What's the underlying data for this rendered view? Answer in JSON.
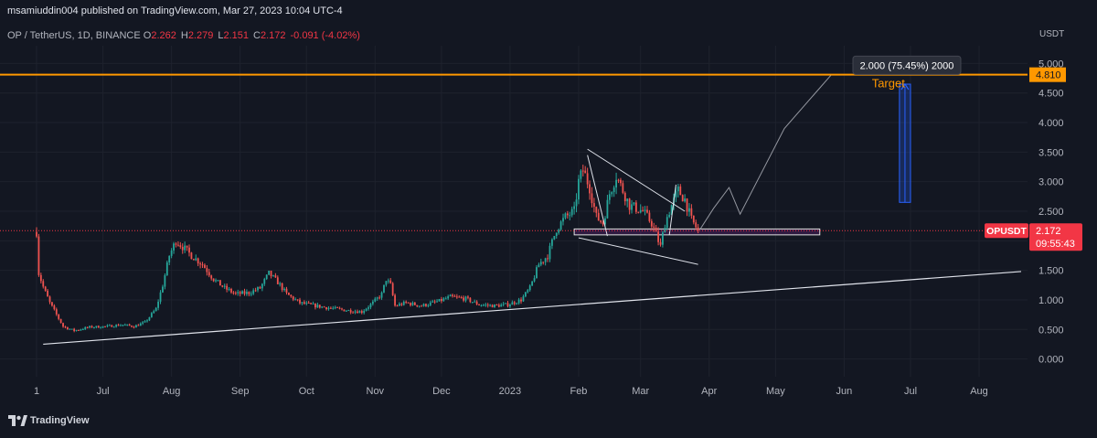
{
  "header": {
    "published_by": "msamiuddin004 published on TradingView.com, Mar 27, 2023 10:04 UTC-4",
    "symbol_line": "OP / TetherUS, 1D, BINANCE",
    "ohlc": [
      {
        "key": "O",
        "value": "2.262"
      },
      {
        "key": "H",
        "value": "2.279"
      },
      {
        "key": "L",
        "value": "2.151"
      },
      {
        "key": "C",
        "value": "2.172"
      },
      {
        "key": "",
        "value": "-0.091 (-4.02%)"
      }
    ]
  },
  "footer": {
    "brand": "TradingView"
  },
  "colors": {
    "background": "#131722",
    "up": "#26a69a",
    "down": "#ef5350",
    "target_line": "#ff9800",
    "price_line": "#f23645",
    "projection_box": "#2962ff",
    "zone_fill": "#9c27b0",
    "axis_text": "#b2b5be",
    "grid": "#1e222d"
  },
  "chart_data": {
    "type": "candlestick",
    "symbol": "OPUSDT",
    "interval": "1D",
    "exchange": "BINANCE",
    "y_axis_unit": "USDT",
    "ylim": [
      -0.3,
      5.3
    ],
    "y_ticks": [
      "0.000",
      "0.500",
      "1.000",
      "1.500",
      "2.000",
      "2.500",
      "3.000",
      "3.500",
      "4.000",
      "4.500",
      "5.000"
    ],
    "x_range": [
      "2022-05-31",
      "2023-08-20"
    ],
    "x_ticks": [
      {
        "label": "1",
        "date": "2022-06-01"
      },
      {
        "label": "Jul",
        "date": "2022-07-01"
      },
      {
        "label": "Aug",
        "date": "2022-08-01"
      },
      {
        "label": "Sep",
        "date": "2022-09-01"
      },
      {
        "label": "Oct",
        "date": "2022-10-01"
      },
      {
        "label": "Nov",
        "date": "2022-11-01"
      },
      {
        "label": "Dec",
        "date": "2022-12-01"
      },
      {
        "label": "2023",
        "date": "2023-01-01"
      },
      {
        "label": "Feb",
        "date": "2023-02-01"
      },
      {
        "label": "Mar",
        "date": "2023-03-01"
      },
      {
        "label": "Apr",
        "date": "2023-04-01"
      },
      {
        "label": "May",
        "date": "2023-05-01"
      },
      {
        "label": "Jun",
        "date": "2023-06-01"
      },
      {
        "label": "Jul",
        "date": "2023-07-01"
      },
      {
        "label": "Aug",
        "date": "2023-08-01"
      }
    ],
    "price_path": [
      [
        "2022-06-01",
        2.15
      ],
      [
        "2022-06-02",
        1.45
      ],
      [
        "2022-06-04",
        1.22
      ],
      [
        "2022-06-07",
        0.95
      ],
      [
        "2022-06-10",
        0.75
      ],
      [
        "2022-06-13",
        0.55
      ],
      [
        "2022-06-18",
        0.48
      ],
      [
        "2022-06-25",
        0.54
      ],
      [
        "2022-07-02",
        0.55
      ],
      [
        "2022-07-10",
        0.58
      ],
      [
        "2022-07-15",
        0.55
      ],
      [
        "2022-07-20",
        0.62
      ],
      [
        "2022-07-25",
        0.85
      ],
      [
        "2022-07-28",
        1.25
      ],
      [
        "2022-07-31",
        1.75
      ],
      [
        "2022-08-03",
        2.0
      ],
      [
        "2022-08-06",
        1.9
      ],
      [
        "2022-08-10",
        1.75
      ],
      [
        "2022-08-15",
        1.6
      ],
      [
        "2022-08-20",
        1.35
      ],
      [
        "2022-08-25",
        1.2
      ],
      [
        "2022-08-30",
        1.1
      ],
      [
        "2022-09-05",
        1.12
      ],
      [
        "2022-09-10",
        1.2
      ],
      [
        "2022-09-14",
        1.45
      ],
      [
        "2022-09-18",
        1.3
      ],
      [
        "2022-09-22",
        1.1
      ],
      [
        "2022-09-28",
        0.95
      ],
      [
        "2022-10-05",
        0.9
      ],
      [
        "2022-10-12",
        0.86
      ],
      [
        "2022-10-20",
        0.82
      ],
      [
        "2022-10-26",
        0.8
      ],
      [
        "2022-10-31",
        0.95
      ],
      [
        "2022-11-04",
        1.1
      ],
      [
        "2022-11-06",
        1.35
      ],
      [
        "2022-11-08",
        1.25
      ],
      [
        "2022-11-10",
        0.9
      ],
      [
        "2022-11-15",
        0.95
      ],
      [
        "2022-11-22",
        0.9
      ],
      [
        "2022-11-30",
        0.98
      ],
      [
        "2022-12-05",
        1.05
      ],
      [
        "2022-12-12",
        1.02
      ],
      [
        "2022-12-18",
        0.92
      ],
      [
        "2022-12-25",
        0.9
      ],
      [
        "2022-12-31",
        0.92
      ],
      [
        "2023-01-06",
        1.0
      ],
      [
        "2023-01-10",
        1.2
      ],
      [
        "2023-01-14",
        1.6
      ],
      [
        "2023-01-18",
        1.75
      ],
      [
        "2023-01-22",
        2.2
      ],
      [
        "2023-01-26",
        2.4
      ],
      [
        "2023-01-30",
        2.5
      ],
      [
        "2023-02-01",
        3.0
      ],
      [
        "2023-02-03",
        3.2
      ],
      [
        "2023-02-06",
        2.9
      ],
      [
        "2023-02-09",
        2.4
      ],
      [
        "2023-02-12",
        2.3
      ],
      [
        "2023-02-15",
        2.8
      ],
      [
        "2023-02-18",
        3.1
      ],
      [
        "2023-02-21",
        2.85
      ],
      [
        "2023-02-24",
        2.6
      ],
      [
        "2023-02-27",
        2.55
      ],
      [
        "2023-03-02",
        2.5
      ],
      [
        "2023-03-06",
        2.3
      ],
      [
        "2023-03-10",
        1.9
      ],
      [
        "2023-03-12",
        2.3
      ],
      [
        "2023-03-15",
        2.6
      ],
      [
        "2023-03-18",
        2.85
      ],
      [
        "2023-03-21",
        2.7
      ],
      [
        "2023-03-24",
        2.35
      ],
      [
        "2023-03-27",
        2.172
      ]
    ],
    "last_price": "2.172",
    "last_price_label": "OPUSDT",
    "countdown": "09:55:43",
    "target_level": {
      "value": 4.81,
      "label": "4.810",
      "text": "Target"
    },
    "projection": {
      "from": 2.65,
      "to": 4.65,
      "start": "2023-06-26",
      "end": "2023-07-01"
    },
    "measure_label": "2.000 (75.45%) 2000",
    "drawings": {
      "support_trendline": [
        [
          "2022-06-04",
          0.25
        ],
        [
          "2023-08-20",
          1.48
        ]
      ],
      "wedge_upper": [
        [
          "2023-02-05",
          3.55
        ],
        [
          "2023-03-21",
          2.5
        ]
      ],
      "wedge_lower": [
        [
          "2023-02-01",
          2.05
        ],
        [
          "2023-03-27",
          1.6
        ]
      ],
      "wedge_left": [
        [
          "2023-02-05",
          3.45
        ],
        [
          "2023-02-14",
          2.08
        ]
      ],
      "zigzag_path": [
        [
          "2023-03-28",
          2.2
        ],
        [
          "2023-04-03",
          2.55
        ],
        [
          "2023-04-10",
          2.9
        ],
        [
          "2023-04-15",
          2.45
        ],
        [
          "2023-05-05",
          3.9
        ],
        [
          "2023-05-26",
          4.8
        ]
      ],
      "demand_zone": {
        "from": 2.1,
        "to": 2.2,
        "start": "2023-01-30",
        "end": "2023-05-21"
      },
      "range_marker": [
        [
          "2023-03-14",
          2.1
        ],
        [
          "2023-03-17",
          2.95
        ]
      ]
    },
    "grid": true
  }
}
